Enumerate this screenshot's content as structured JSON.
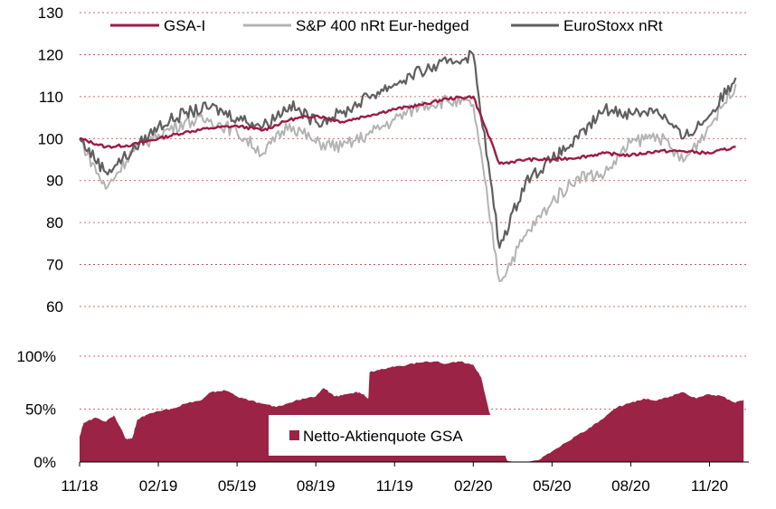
{
  "colors": {
    "gsa": "#9b1c45",
    "sp400": "#b3b3b3",
    "eurostoxx": "#5f5f5f",
    "quote_fill": "#9b2345",
    "grid": "#c8384a"
  },
  "chart_data": [
    {
      "type": "line",
      "x_tick_labels": [
        "11/18",
        "02/19",
        "05/19",
        "08/19",
        "11/19",
        "02/20",
        "05/20",
        "08/20",
        "11/20"
      ],
      "y_tick_labels": [
        "60",
        "70",
        "80",
        "90",
        "100",
        "110",
        "120",
        "130"
      ],
      "ylim": [
        60,
        130
      ],
      "grid": true,
      "legend": "top",
      "x_months": [
        0,
        1,
        2,
        3,
        4,
        5,
        6,
        7,
        8,
        9,
        10,
        11,
        12,
        13,
        14,
        15,
        16,
        17,
        18,
        19,
        20,
        21,
        22,
        23,
        24,
        25
      ],
      "series": [
        {
          "name": "GSA-I",
          "key": "gsa",
          "values": [
            100.0,
            98.0,
            98.5,
            100.0,
            101.5,
            102.5,
            103.0,
            102.0,
            104.5,
            105.5,
            104.0,
            105.5,
            107.0,
            108.0,
            109.5,
            110.0,
            94.0,
            95.0,
            95.0,
            95.5,
            96.5,
            96.0,
            97.0,
            97.0,
            96.5,
            98.0
          ]
        },
        {
          "name": "S&P 400 nRt Eur-hedged",
          "key": "sp400",
          "values": [
            100.0,
            88.0,
            97.0,
            101.0,
            104.0,
            104.5,
            101.5,
            96.5,
            103.5,
            99.0,
            98.0,
            101.0,
            104.5,
            108.0,
            109.0,
            108.0,
            66.0,
            77.0,
            85.0,
            91.0,
            91.5,
            99.0,
            101.0,
            94.5,
            103.0,
            113.0
          ]
        },
        {
          "name": "EuroStoxx nRt",
          "key": "eurostoxx",
          "values": [
            100.0,
            92.0,
            97.0,
            103.0,
            106.0,
            107.5,
            105.0,
            103.0,
            108.0,
            104.0,
            106.0,
            110.0,
            113.0,
            116.0,
            118.0,
            120.0,
            74.0,
            90.0,
            95.0,
            100.0,
            107.0,
            106.0,
            107.0,
            100.0,
            105.5,
            114.5
          ]
        }
      ]
    },
    {
      "type": "area",
      "x_tick_labels": [
        "11/18",
        "02/19",
        "05/19",
        "08/19",
        "11/19",
        "02/20",
        "05/20",
        "08/20",
        "11/20"
      ],
      "y_tick_labels": [
        "0%",
        "50%",
        "100%"
      ],
      "ylim": [
        0,
        100
      ],
      "series": [
        {
          "name": "Netto-Aktienquote GSA",
          "x_months": [
            0,
            0.15,
            0.6,
            1.0,
            1.3,
            1.55,
            1.75,
            2.0,
            2.2,
            2.6,
            3.0,
            3.5,
            4.0,
            4.6,
            5.0,
            5.5,
            6.0,
            6.5,
            7.0,
            7.5,
            8.0,
            8.5,
            9.0,
            9.3,
            9.7,
            10.0,
            10.5,
            10.8,
            11.0,
            11.05,
            11.5,
            12.0,
            12.5,
            13.0,
            13.5,
            14.0,
            14.5,
            15.0,
            15.3,
            15.6,
            16.0,
            16.3,
            16.6,
            17.0,
            17.5,
            18.0,
            18.5,
            19.0,
            19.5,
            20.0,
            20.5,
            21.0,
            21.5,
            22.0,
            22.5,
            23.0,
            23.5,
            24.0,
            24.5,
            25.0,
            25.3
          ],
          "values": [
            24,
            37,
            42,
            38,
            44,
            33,
            22,
            22,
            40,
            45,
            48,
            50,
            55,
            58,
            66,
            68,
            62,
            58,
            55,
            52,
            56,
            60,
            62,
            70,
            62,
            63,
            66,
            64,
            60,
            85,
            88,
            90,
            92,
            94,
            95,
            93,
            95,
            92,
            80,
            48,
            20,
            1,
            0,
            0,
            2,
            10,
            18,
            26,
            33,
            42,
            52,
            56,
            60,
            58,
            62,
            66,
            60,
            64,
            62,
            56,
            59
          ]
        }
      ],
      "legend_label": "Netto-Aktienquote GSA"
    }
  ]
}
